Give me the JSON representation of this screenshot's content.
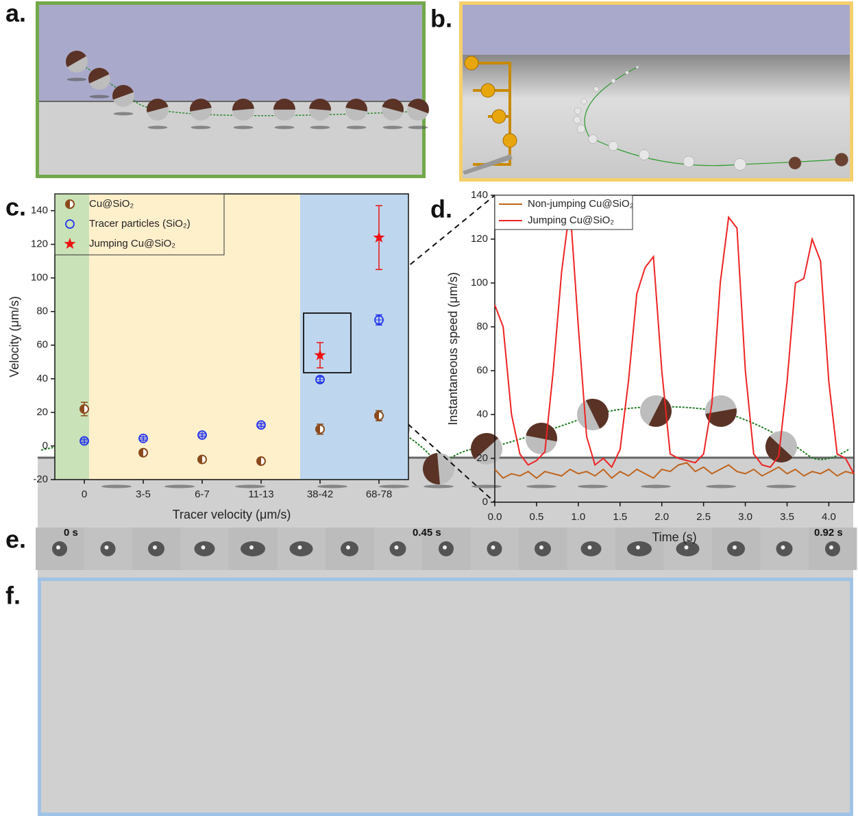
{
  "panels": {
    "a": "a.",
    "b": "b.",
    "c": "c.",
    "d": "d.",
    "e": "e.",
    "f": "f."
  },
  "frame_labels": [
    "0 s",
    "0.45 s",
    "0.92 s"
  ],
  "chart_data": [
    {
      "type": "scatter",
      "categories": [
        "0",
        "3-5",
        "6-7",
        "11-13",
        "38-42",
        "68-78"
      ],
      "xlabel": "Tracer velocity (μm/s)",
      "ylabel": "Velocity (μm/s)",
      "ylim": [
        -20,
        150
      ],
      "yticks": [
        -20,
        0,
        20,
        40,
        60,
        80,
        100,
        120,
        140
      ],
      "series": [
        {
          "name": "Cu@SiO₂",
          "color": "#8b4a1c",
          "marker": "half-circle",
          "values": [
            22,
            -4,
            -8,
            -9,
            10,
            18
          ],
          "errors": [
            4,
            1,
            1,
            1.5,
            3,
            3
          ]
        },
        {
          "name": "Tracer particles (SiO₂)",
          "color": "#2233ee",
          "marker": "crossed-circle",
          "values": [
            3,
            4.5,
            6.5,
            12.5,
            39.5,
            75
          ],
          "errors": [
            1,
            1,
            1,
            1,
            1.5,
            3
          ]
        },
        {
          "name": "Jumping  Cu@SiO₂",
          "color": "#ee1111",
          "marker": "star",
          "values": [
            null,
            null,
            null,
            null,
            54,
            124
          ],
          "errors": [
            null,
            null,
            null,
            null,
            7.5,
            19
          ]
        }
      ]
    },
    {
      "type": "line",
      "xlabel": "Time (s)",
      "ylabel": "Instantaneous speed (μm/s)",
      "xlim": [
        0,
        4.3
      ],
      "ylim": [
        0,
        140
      ],
      "xticks": [
        {
          "value": 0,
          "label": "0.0"
        },
        0.5,
        {
          "value": 1,
          "label": "1.0"
        },
        1.5,
        {
          "value": 2,
          "label": "2.0"
        },
        2.5,
        {
          "value": 3,
          "label": "3.0"
        },
        3.5,
        {
          "value": 4,
          "label": "4.0"
        }
      ],
      "yticks": [
        0,
        20,
        40,
        60,
        80,
        100,
        120,
        140
      ],
      "x": [
        0,
        0.1,
        0.2,
        0.3,
        0.4,
        0.5,
        0.6,
        0.7,
        0.8,
        0.9,
        1,
        1.1,
        1.2,
        1.3,
        1.4,
        1.5,
        1.6,
        1.7,
        1.8,
        1.9,
        2,
        2.1,
        2.2,
        2.3,
        2.4,
        2.5,
        2.6,
        2.7,
        2.8,
        2.9,
        3,
        3.1,
        3.2,
        3.3,
        3.4,
        3.5,
        3.6,
        3.7,
        3.8,
        3.9,
        4,
        4.1,
        4.2,
        4.3
      ],
      "series": [
        {
          "name": "Non-jumping Cu@SiO₂",
          "color": "#c0641c",
          "values": [
            15,
            11,
            13,
            12,
            14,
            11,
            14,
            13,
            12,
            15,
            13,
            14,
            12,
            15,
            11,
            14,
            12,
            15,
            13,
            11,
            15,
            14,
            17,
            18,
            14,
            16,
            13,
            15,
            17,
            14,
            13,
            15,
            12,
            14,
            16,
            13,
            15,
            12,
            14,
            13,
            15,
            12,
            14,
            13
          ]
        },
        {
          "name": "Jumping Cu@SiO₂",
          "color": "#ee2222",
          "values": [
            90,
            80,
            40,
            22,
            17,
            19,
            23,
            60,
            105,
            135,
            80,
            30,
            17,
            20,
            16,
            24,
            55,
            95,
            107,
            112,
            60,
            22,
            20,
            19,
            18,
            22,
            45,
            100,
            130,
            125,
            60,
            22,
            17,
            16,
            21,
            55,
            100,
            102,
            120,
            110,
            55,
            22,
            20,
            13
          ]
        }
      ]
    }
  ]
}
